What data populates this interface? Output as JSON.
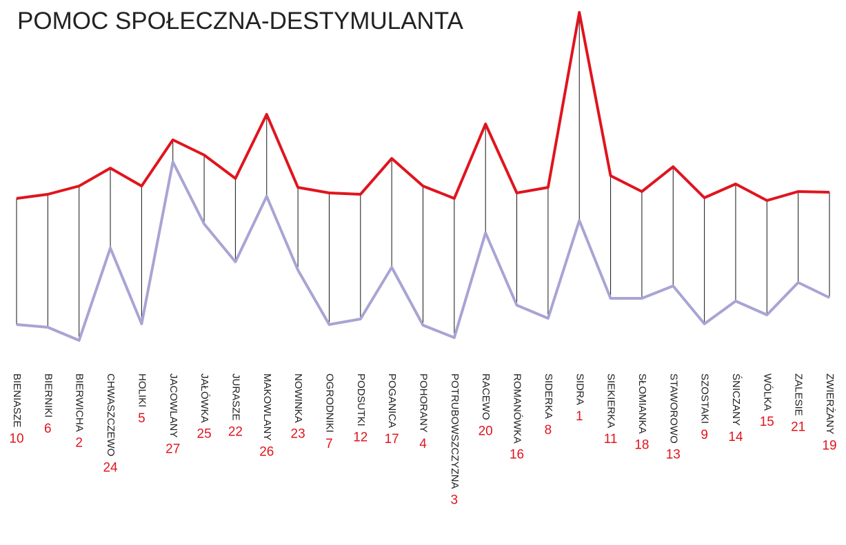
{
  "chart_data": {
    "type": "line",
    "title": "POMOC SPOŁECZNA-DESTYMULANTA",
    "categories": [
      "BIENIASZE",
      "BIERNIKI",
      "BIERWICHA",
      "CHWASZCZEWO",
      "HOLIKI",
      "JACOWLANY",
      "JAŁÓWKA",
      "JURASZE",
      "MAKOWLANY",
      "NOWINKA",
      "OGRODNIKI",
      "PODSUTKI",
      "POGANICA",
      "POHORANY",
      "POTRUBOWSZCZYZNA",
      "RACEWO",
      "ROMANÓWKA",
      "SIDERKA",
      "SIDRA",
      "SIEKIERKA",
      "SŁOMIANKA",
      "STAWOROWO",
      "SZOSTAKI",
      "ŚNICZANY",
      "WÓLKA",
      "ZALESIE",
      "ZWIERŻANY"
    ],
    "ranks": [
      "10",
      "6",
      "2",
      "24",
      "5",
      "27",
      "25",
      "22",
      "26",
      "23",
      "7",
      "12",
      "17",
      "4",
      "3",
      "20",
      "16",
      "8",
      "1",
      "11",
      "18",
      "13",
      "9",
      "14",
      "15",
      "21",
      "19"
    ],
    "ylim": [
      0,
      100
    ],
    "series": [
      {
        "color": "#e0141e",
        "values": [
          42.4,
          43.6,
          46,
          51.2,
          46,
          59.4,
          55,
          48.2,
          66.8,
          45.6,
          44,
          43.6,
          54,
          46,
          42.4,
          64,
          44,
          45.6,
          96.4,
          49,
          44.4,
          51.6,
          42.6,
          46.6,
          41.8,
          44.4,
          44.2
        ]
      },
      {
        "color": "#a8a4d4",
        "values": [
          5.8,
          5,
          1.2,
          28,
          6,
          53,
          35,
          24,
          43,
          21.6,
          5.8,
          7.4,
          22.4,
          5.6,
          2,
          32.4,
          11.4,
          7.6,
          36,
          13.4,
          13.4,
          17,
          6,
          12.6,
          8.6,
          18,
          13.6
        ]
      }
    ]
  }
}
